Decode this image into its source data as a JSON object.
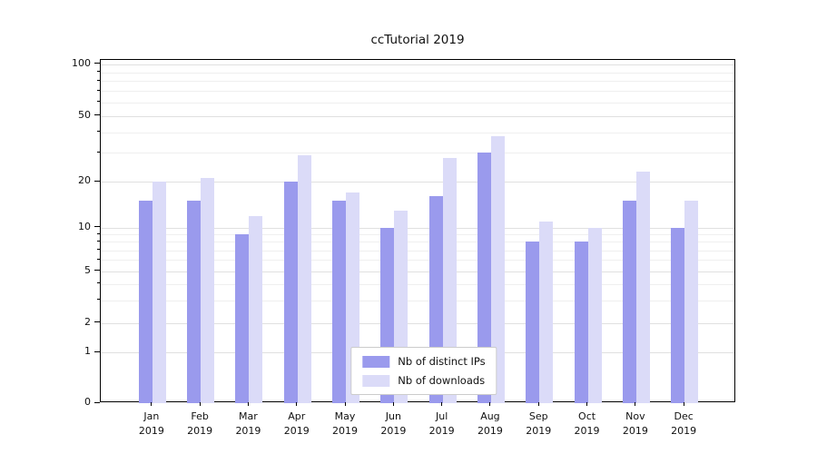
{
  "chart_data": {
    "type": "bar",
    "title": "ccTutorial 2019",
    "categories": [
      "Jan 2019",
      "Feb 2019",
      "Mar 2019",
      "Apr 2019",
      "May 2019",
      "Jun 2019",
      "Jul 2019",
      "Aug 2019",
      "Sep 2019",
      "Oct 2019",
      "Nov 2019",
      "Dec 2019"
    ],
    "series": [
      {
        "name": "Nb of distinct IPs",
        "color": "#9a9aed",
        "values": [
          15,
          15,
          9,
          20,
          15,
          10,
          16,
          30,
          8,
          8,
          15,
          10
        ]
      },
      {
        "name": "Nb of downloads",
        "color": "#dbdbf8",
        "values": [
          20,
          21,
          12,
          29,
          17,
          13,
          28,
          38,
          11,
          10,
          23,
          15
        ]
      }
    ],
    "y_ticks": [
      0,
      1,
      2,
      5,
      10,
      20,
      50,
      100
    ],
    "y_scale": "symlog",
    "ylim": [
      0,
      110
    ],
    "grid": true,
    "legend_position": "lower center",
    "colors": {
      "grid_major": "#e0e0e0",
      "grid_minor": "#efefef",
      "axis": "#000000"
    }
  }
}
